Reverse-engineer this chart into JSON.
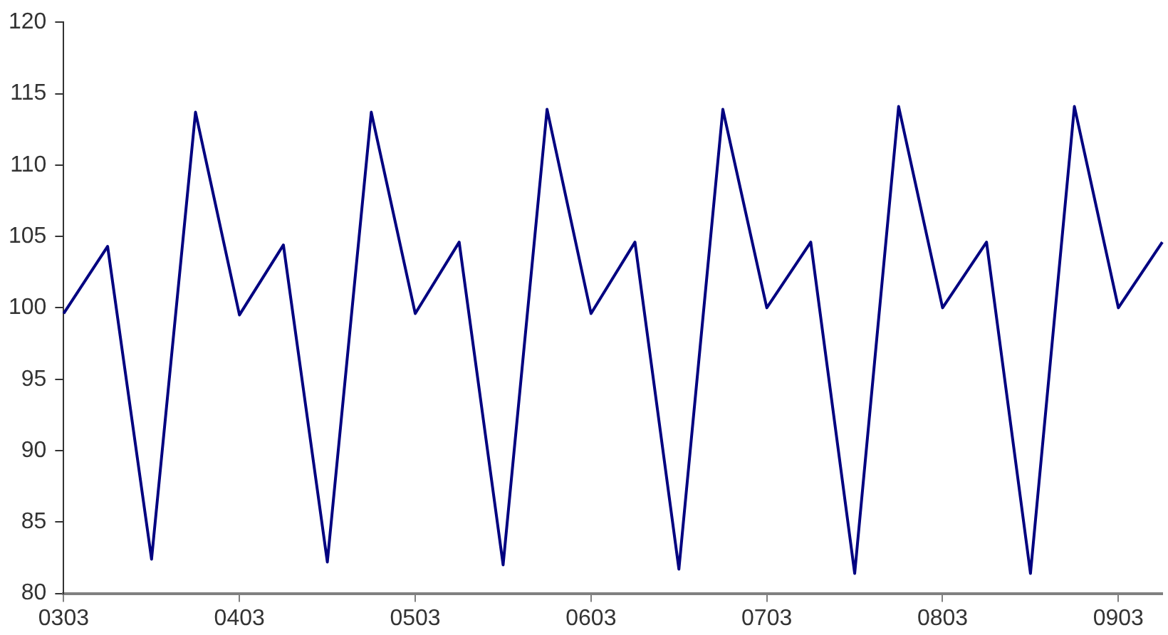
{
  "chart_data": {
    "type": "line",
    "categories": [
      "0303",
      null,
      null,
      null,
      "0403",
      null,
      null,
      null,
      "0503",
      null,
      null,
      null,
      "0603",
      null,
      null,
      null,
      "0703",
      null,
      null,
      null,
      "0803",
      null,
      null,
      null,
      "0903",
      null
    ],
    "series": [
      {
        "color": "#000080",
        "values": [
          99.6,
          104.3,
          82.4,
          113.7,
          99.5,
          104.4,
          82.2,
          113.7,
          99.6,
          104.6,
          82.0,
          113.9,
          99.6,
          104.6,
          81.7,
          113.9,
          100.0,
          104.6,
          81.4,
          114.1,
          100.0,
          104.6,
          81.4,
          114.1,
          100.0,
          104.6
        ]
      }
    ],
    "ylim": [
      80,
      120
    ],
    "yticks": [
      80,
      85,
      90,
      95,
      100,
      105,
      110,
      115,
      120
    ],
    "grid": false,
    "legend": false,
    "marker": "none",
    "line_style": "solid"
  }
}
